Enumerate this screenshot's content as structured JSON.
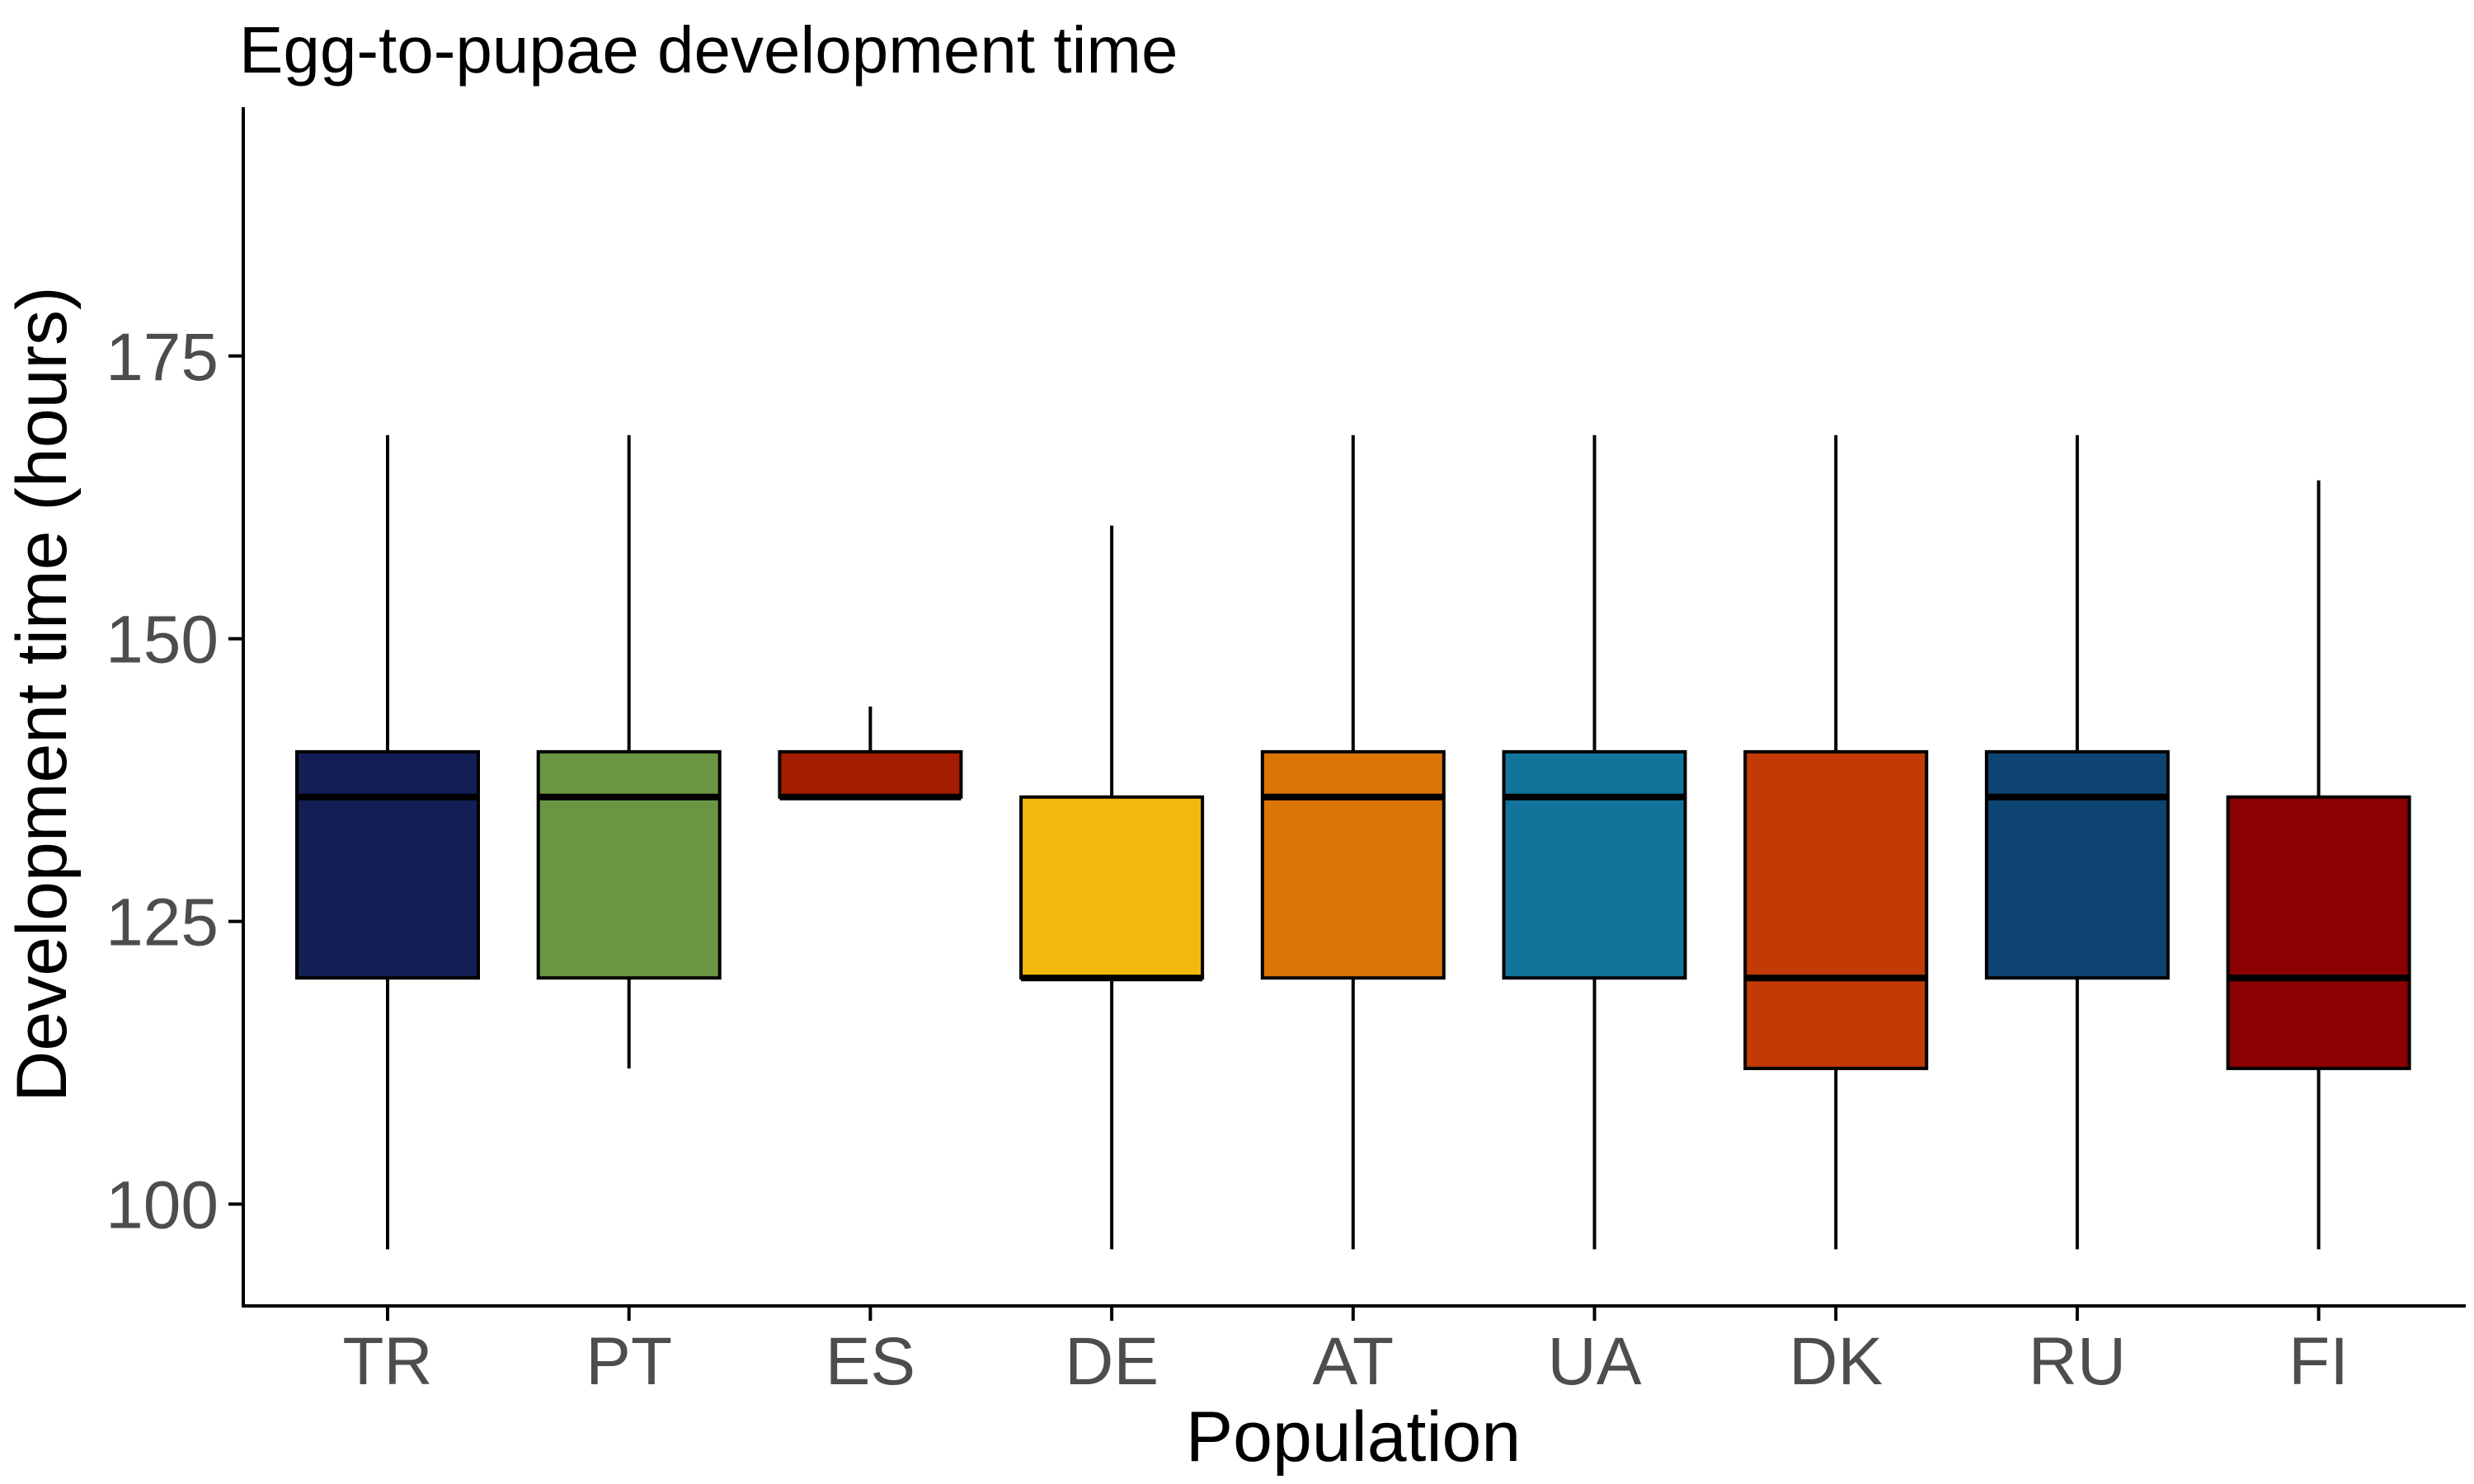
{
  "chart_data": {
    "type": "boxplot",
    "title": "Egg-to-pupae development time",
    "xlabel": "Population",
    "ylabel": "Development time (hours)",
    "ylim": [
      91,
      197
    ],
    "yticks": [
      100,
      125,
      150,
      175
    ],
    "grid": false,
    "legend": "none",
    "categories": [
      "TR",
      "PT",
      "ES",
      "DE",
      "AT",
      "UA",
      "DK",
      "RU",
      "FI"
    ],
    "boxes": [
      {
        "category": "TR",
        "whisker_low": 96,
        "q1": 120,
        "median": 136,
        "q3": 140,
        "whisker_high": 168,
        "color": "#131e55"
      },
      {
        "category": "PT",
        "whisker_low": 112,
        "q1": 120,
        "median": 136,
        "q3": 140,
        "whisker_high": 168,
        "color": "#6a9644"
      },
      {
        "category": "ES",
        "whisker_low": 136,
        "q1": 136,
        "median": 136,
        "q3": 140,
        "whisker_high": 144,
        "color": "#a61c00"
      },
      {
        "category": "DE",
        "whisker_low": 96,
        "q1": 120,
        "median": 120,
        "q3": 136,
        "whisker_high": 160,
        "color": "#f2b80c"
      },
      {
        "category": "AT",
        "whisker_low": 96,
        "q1": 120,
        "median": 136,
        "q3": 140,
        "whisker_high": 168,
        "color": "#dc7506"
      },
      {
        "category": "UA",
        "whisker_low": 96,
        "q1": 120,
        "median": 136,
        "q3": 140,
        "whisker_high": 168,
        "color": "#11759b"
      },
      {
        "category": "DK",
        "whisker_low": 96,
        "q1": 112,
        "median": 120,
        "q3": 140,
        "whisker_high": 168,
        "color": "#c23a06"
      },
      {
        "category": "RU",
        "whisker_low": 96,
        "q1": 120,
        "median": 136,
        "q3": 140,
        "whisker_high": 168,
        "color": "#0e4472"
      },
      {
        "category": "FI",
        "whisker_low": 96,
        "q1": 112,
        "median": 120,
        "q3": 136,
        "whisker_high": 164,
        "color": "#8b0000"
      }
    ]
  }
}
